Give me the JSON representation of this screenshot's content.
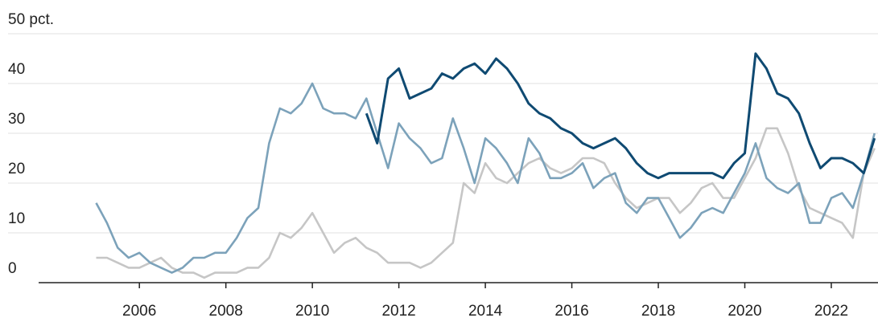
{
  "chart_data": {
    "type": "line",
    "x": [
      2005,
      2005.25,
      2005.5,
      2005.75,
      2006,
      2006.25,
      2006.5,
      2006.75,
      2007,
      2007.25,
      2007.5,
      2007.75,
      2008,
      2008.25,
      2008.5,
      2008.75,
      2009,
      2009.25,
      2009.5,
      2009.75,
      2010,
      2010.25,
      2010.5,
      2010.75,
      2011,
      2011.25,
      2011.5,
      2011.75,
      2012,
      2012.25,
      2012.5,
      2012.75,
      2013,
      2013.25,
      2013.5,
      2013.75,
      2014,
      2014.25,
      2014.5,
      2014.75,
      2015,
      2015.25,
      2015.5,
      2015.75,
      2016,
      2016.25,
      2016.5,
      2016.75,
      2017,
      2017.25,
      2017.5,
      2017.75,
      2018,
      2018.25,
      2018.5,
      2018.75,
      2019,
      2019.25,
      2019.5,
      2019.75,
      2020,
      2020.25,
      2020.5,
      2020.75,
      2021,
      2021.25,
      2021.5,
      2021.75,
      2022,
      2022.25,
      2022.5,
      2022.75,
      2023
    ],
    "series": [
      {
        "color": "#c6c6c6",
        "values": [
          5,
          5,
          4,
          3,
          3,
          4,
          5,
          3,
          2,
          2,
          1,
          2,
          2,
          2,
          3,
          3,
          5,
          10,
          9,
          11,
          14,
          10,
          6,
          8,
          9,
          7,
          6,
          4,
          4,
          4,
          3,
          4,
          6,
          8,
          20,
          18,
          24,
          21,
          20,
          22,
          24,
          25,
          23,
          22,
          23,
          25,
          25,
          24,
          20,
          17,
          15,
          16,
          17,
          17,
          14,
          16,
          19,
          20,
          17,
          17,
          21,
          25,
          31,
          31,
          26,
          19,
          15,
          14,
          13,
          12,
          9,
          22,
          27
        ]
      },
      {
        "color": "#7ca2ba",
        "values": [
          16,
          12,
          7,
          5,
          6,
          4,
          3,
          2,
          3,
          5,
          5,
          6,
          6,
          9,
          13,
          15,
          28,
          35,
          34,
          36,
          40,
          35,
          34,
          34,
          33,
          37,
          30,
          23,
          32,
          29,
          27,
          24,
          25,
          33,
          27,
          20,
          29,
          27,
          24,
          20,
          29,
          26,
          21,
          21,
          22,
          24,
          19,
          21,
          22,
          16,
          14,
          17,
          17,
          13,
          9,
          11,
          14,
          15,
          14,
          18,
          22,
          28,
          21,
          19,
          18,
          20,
          12,
          12,
          17,
          18,
          15,
          22,
          30
        ]
      },
      {
        "color": "#0f4a72",
        "values": [
          null,
          null,
          null,
          null,
          null,
          null,
          null,
          null,
          null,
          null,
          null,
          null,
          null,
          null,
          null,
          null,
          null,
          null,
          null,
          null,
          null,
          null,
          null,
          null,
          null,
          34,
          28,
          41,
          43,
          37,
          38,
          39,
          42,
          41,
          43,
          44,
          42,
          45,
          43,
          40,
          36,
          34,
          33,
          31,
          30,
          28,
          27,
          28,
          29,
          27,
          24,
          22,
          21,
          22,
          22,
          22,
          22,
          22,
          21,
          24,
          26,
          46,
          43,
          38,
          37,
          34,
          28,
          23,
          25,
          25,
          24,
          22,
          29
        ]
      }
    ],
    "xlim": [
      2003.67,
      2023.08
    ],
    "xticks": [
      2006,
      2008,
      2010,
      2012,
      2014,
      2016,
      2018,
      2020,
      2022
    ],
    "ylim": [
      0,
      50
    ],
    "yticks": [
      0,
      10,
      20,
      30,
      40,
      {
        "value": 50,
        "label": "50 pct."
      }
    ],
    "grid": true
  }
}
